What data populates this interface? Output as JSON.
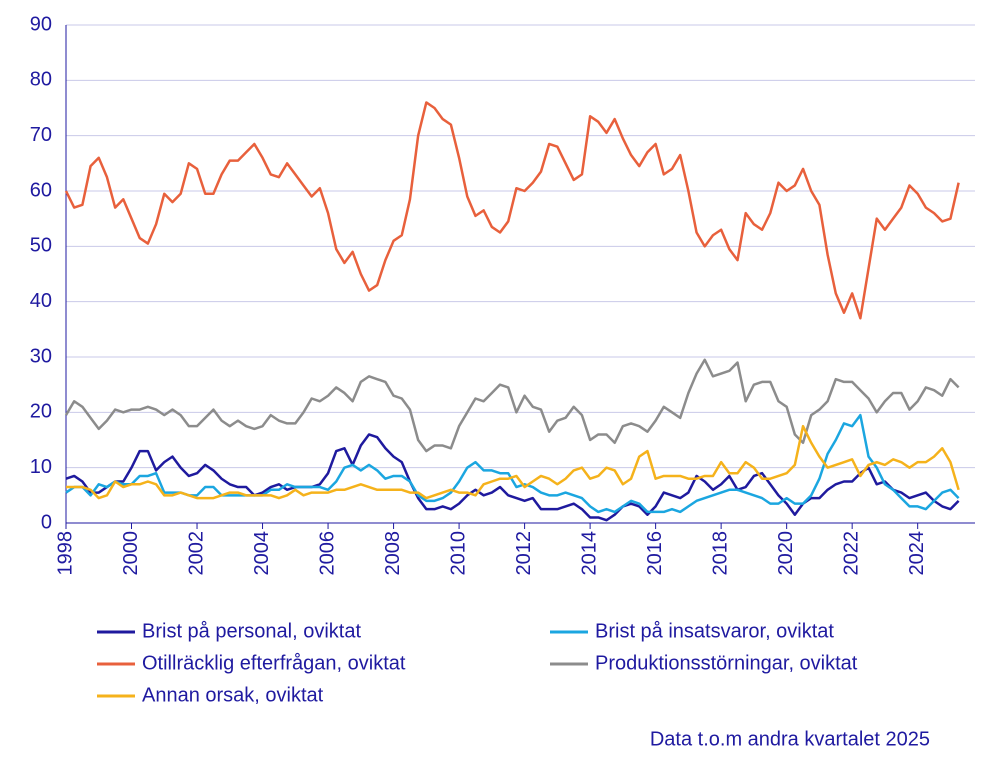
{
  "chart_data": {
    "type": "line",
    "note": "Data t.o.m andra kvartalet 2025",
    "x": [
      1998,
      1998.25,
      1998.5,
      1998.75,
      1999,
      1999.25,
      1999.5,
      1999.75,
      2000,
      2000.25,
      2000.5,
      2000.75,
      2001,
      2001.25,
      2001.5,
      2001.75,
      2002,
      2002.25,
      2002.5,
      2002.75,
      2003,
      2003.25,
      2003.5,
      2003.75,
      2004,
      2004.25,
      2004.5,
      2004.75,
      2005,
      2005.25,
      2005.5,
      2005.75,
      2006,
      2006.25,
      2006.5,
      2006.75,
      2007,
      2007.25,
      2007.5,
      2007.75,
      2008,
      2008.25,
      2008.5,
      2008.75,
      2009,
      2009.25,
      2009.5,
      2009.75,
      2010,
      2010.25,
      2010.5,
      2010.75,
      2011,
      2011.25,
      2011.5,
      2011.75,
      2012,
      2012.25,
      2012.5,
      2012.75,
      2013,
      2013.25,
      2013.5,
      2013.75,
      2014,
      2014.25,
      2014.5,
      2014.75,
      2015,
      2015.25,
      2015.5,
      2015.75,
      2016,
      2016.25,
      2016.5,
      2016.75,
      2017,
      2017.25,
      2017.5,
      2017.75,
      2018,
      2018.25,
      2018.5,
      2018.75,
      2019,
      2019.25,
      2019.5,
      2019.75,
      2020,
      2020.25,
      2020.5,
      2020.75,
      2021,
      2021.25,
      2021.5,
      2021.75,
      2022,
      2022.25,
      2022.5,
      2022.75,
      2023,
      2023.25,
      2023.5,
      2023.75,
      2024,
      2024.25,
      2024.5,
      2024.75,
      2025,
      2025.25
    ],
    "series": [
      {
        "name": "Brist på personal, oviktat",
        "color": "#1f1a9e",
        "values": [
          8,
          8.5,
          7.5,
          5.5,
          5.5,
          6.5,
          7.5,
          7.5,
          10,
          13,
          13,
          9.5,
          11,
          12,
          10,
          8.5,
          9,
          10.5,
          9.5,
          8,
          7,
          6.5,
          6.5,
          5,
          5.5,
          6.5,
          7,
          6,
          6.5,
          6.5,
          6.5,
          7,
          9,
          13,
          13.5,
          10.5,
          14,
          16,
          15.5,
          13.5,
          12,
          11,
          7.5,
          4.5,
          2.5,
          2.5,
          3,
          2.5,
          3.5,
          5,
          6,
          5,
          5.5,
          6.5,
          5,
          4.5,
          4,
          4.5,
          2.5,
          2.5,
          2.5,
          3,
          3.5,
          2.5,
          1,
          1,
          0.5,
          1.5,
          3,
          3.5,
          3,
          1.5,
          3,
          5.5,
          5,
          4.5,
          5.5,
          8.5,
          7.5,
          6,
          7,
          8.5,
          6,
          6.5,
          8.5,
          9,
          7,
          5,
          3.5,
          1.5,
          3.5,
          4.5,
          4.5,
          6,
          7,
          7.5,
          7.5,
          9,
          10,
          7,
          7.5,
          6,
          5.5,
          4.5,
          5,
          5.5,
          4,
          3,
          2.5,
          4
        ]
      },
      {
        "name": "Brist på insatsvaror, oviktat",
        "color": "#1ba6e0",
        "values": [
          5.5,
          6.5,
          6.5,
          5,
          7,
          6.5,
          7.5,
          7,
          7,
          8.5,
          8.5,
          9,
          5.5,
          5.5,
          5.5,
          5,
          5,
          6.5,
          6.5,
          5,
          5,
          5,
          5,
          5,
          5,
          6,
          6,
          7,
          6.5,
          6.5,
          6.5,
          6.5,
          6,
          7.5,
          10,
          10.5,
          9.5,
          10.5,
          9.5,
          8,
          8.5,
          8.5,
          7.5,
          5,
          4,
          4,
          4.5,
          5.5,
          7.5,
          10,
          11,
          9.5,
          9.5,
          9,
          9,
          6.5,
          7,
          6.5,
          5.5,
          5,
          5,
          5.5,
          5,
          4.5,
          3,
          2,
          2.5,
          2,
          3,
          4,
          3.5,
          2,
          2,
          2,
          2.5,
          2,
          3,
          4,
          4.5,
          5,
          5.5,
          6,
          6,
          5.5,
          5,
          4.5,
          3.5,
          3.5,
          4.5,
          3.5,
          3.5,
          5,
          8,
          12.5,
          15,
          18,
          17.5,
          19.5,
          12,
          10,
          7,
          6,
          4.5,
          3,
          3,
          2.5,
          4,
          5.5,
          6,
          4.5
        ]
      },
      {
        "name": "Otillräcklig efterfrågan, oviktat",
        "color": "#e8603c",
        "values": [
          60,
          57,
          57.5,
          64.5,
          66,
          62.5,
          57,
          58.5,
          55,
          51.5,
          50.5,
          54,
          59.5,
          58,
          59.5,
          65,
          64,
          59.5,
          59.5,
          63,
          65.5,
          65.5,
          67,
          68.5,
          66,
          63,
          62.5,
          65,
          63,
          61,
          59,
          60.5,
          56,
          49.5,
          47,
          49,
          45,
          42,
          43,
          47.5,
          51,
          52,
          58.5,
          70,
          76,
          75,
          73,
          72,
          66,
          59,
          55.5,
          56.5,
          53.5,
          52.5,
          54.5,
          60.5,
          60,
          61.5,
          63.5,
          68.5,
          68,
          65,
          62,
          63,
          73.5,
          72.5,
          70.5,
          73,
          69.5,
          66.5,
          64.5,
          67,
          68.5,
          63,
          64,
          66.5,
          60,
          52.5,
          50,
          52,
          53,
          49.5,
          47.5,
          56,
          54,
          53,
          56,
          61.5,
          60,
          61,
          64,
          60,
          57.5,
          48.5,
          41.5,
          38,
          41.5,
          37,
          46,
          55,
          53,
          55,
          57,
          61,
          59.5,
          57,
          56,
          54.5,
          55,
          61.5
        ]
      },
      {
        "name": "Produktionsstörningar, oviktat",
        "color": "#8c8c8c",
        "values": [
          19.5,
          22,
          21,
          19,
          17,
          18.5,
          20.5,
          20,
          20.5,
          20.5,
          21,
          20.5,
          19.5,
          20.5,
          19.5,
          17.5,
          17.5,
          19,
          20.5,
          18.5,
          17.5,
          18.5,
          17.5,
          17,
          17.5,
          19.5,
          18.5,
          18,
          18,
          20,
          22.5,
          22,
          23,
          24.5,
          23.5,
          22,
          25.5,
          26.5,
          26,
          25.5,
          23,
          22.5,
          20.5,
          15,
          13,
          14,
          14,
          13.5,
          17.5,
          20,
          22.5,
          22,
          23.5,
          25,
          24.5,
          20,
          23,
          21,
          20.5,
          16.5,
          18.5,
          19,
          21,
          19.5,
          15,
          16,
          16,
          14.5,
          17.5,
          18,
          17.5,
          16.5,
          18.5,
          21,
          20,
          19,
          23.5,
          27,
          29.5,
          26.5,
          27,
          27.5,
          29,
          22,
          25,
          25.5,
          25.5,
          22,
          21,
          16,
          14.5,
          19.5,
          20.5,
          22,
          26,
          25.5,
          25.5,
          24,
          22.5,
          20,
          22,
          23.5,
          23.5,
          20.5,
          22,
          24.5,
          24,
          23,
          26,
          24.5
        ]
      },
      {
        "name": "Annan orsak, oviktat",
        "color": "#f5b21b",
        "values": [
          6.5,
          6.5,
          6.5,
          6,
          4.5,
          5,
          7.5,
          6.5,
          7,
          7,
          7.5,
          7,
          5,
          5,
          5.5,
          5,
          4.5,
          4.5,
          4.5,
          5,
          5.5,
          5.5,
          5,
          5,
          5,
          5,
          4.5,
          5,
          6,
          5,
          5.5,
          5.5,
          5.5,
          6,
          6,
          6.5,
          7,
          6.5,
          6,
          6,
          6,
          6,
          5.5,
          5.5,
          4.5,
          5,
          5.5,
          6,
          5.5,
          5.5,
          5,
          7,
          7.5,
          8,
          8,
          8.5,
          6.5,
          7.5,
          8.5,
          8,
          7,
          8,
          9.5,
          10,
          8,
          8.5,
          10,
          9.5,
          7,
          8,
          12,
          13,
          8,
          8.5,
          8.5,
          8.5,
          8,
          8,
          8.5,
          8.5,
          11,
          9,
          9,
          11,
          10,
          8,
          8,
          8.5,
          9,
          10.5,
          17.5,
          14.5,
          12,
          10,
          10.5,
          11,
          11.5,
          8.5,
          10.5,
          11,
          10.5,
          11.5,
          11,
          10,
          11,
          11,
          12,
          13.5,
          11,
          6
        ]
      }
    ],
    "xlim": [
      1998,
      2025.75
    ],
    "xticks": [
      1998,
      2000,
      2002,
      2004,
      2006,
      2008,
      2010,
      2012,
      2014,
      2016,
      2018,
      2020,
      2022,
      2024
    ],
    "ylim": [
      0,
      90
    ],
    "yticks": [
      0,
      10,
      20,
      30,
      40,
      50,
      60,
      70,
      80,
      90
    ],
    "grid": true
  }
}
